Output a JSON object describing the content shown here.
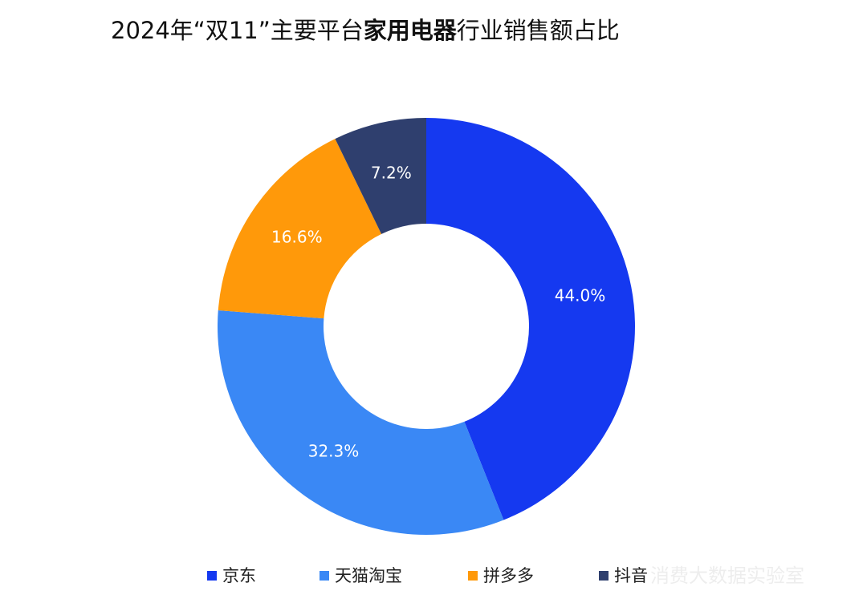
{
  "chart_data": {
    "type": "pie",
    "title": [
      "2024年“双11”主要平台",
      "家用电器",
      "行业销售额占比"
    ],
    "categories": [
      "京东",
      "天猫淘宝",
      "拼多多",
      "抖音"
    ],
    "values": [
      44.0,
      32.3,
      16.6,
      7.2
    ],
    "value_labels": [
      "44.0%",
      "32.3%",
      "16.6%",
      "7.2%"
    ],
    "colors": [
      "#1539f0",
      "#3a88f5",
      "#ff990a",
      "#2f3f6e"
    ],
    "legend": "bottom",
    "watermark": "消费大数据实验室"
  }
}
